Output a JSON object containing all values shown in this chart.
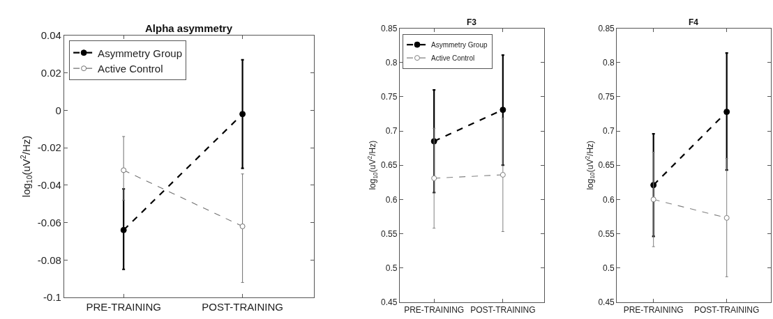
{
  "chart_data": [
    {
      "type": "line",
      "title": "Alpha asymmetry",
      "ylabel": "log$_{10}$(uV$^{2}$/Hz)",
      "categories": [
        "PRE-TRAINING",
        "POST-TRAINING"
      ],
      "ylim": [
        -0.1,
        0.04
      ],
      "yticks": [
        -0.1,
        -0.08,
        -0.06,
        -0.04,
        -0.02,
        0,
        0.02,
        0.04
      ],
      "legend": "top left",
      "line_style": "dashed",
      "series": [
        {
          "name": "Asymmetry Group",
          "color": "#000000",
          "marker": "circle",
          "values": [
            -0.064,
            -0.002
          ],
          "errors": [
            [
              -0.085,
              -0.042
            ],
            [
              -0.031,
              0.027
            ]
          ]
        },
        {
          "name": "Active Control",
          "color": "#707070",
          "marker": "open circle",
          "values": [
            -0.032,
            -0.062
          ],
          "errors": [
            [
              -0.048,
              -0.014
            ],
            [
              -0.092,
              -0.034
            ]
          ]
        }
      ]
    },
    {
      "type": "line",
      "title": "F3",
      "ylabel": "log$_{10}$(uV$^{2}$/Hz)",
      "categories": [
        "PRE-TRAINING",
        "POST-TRAINING"
      ],
      "ylim": [
        0.45,
        0.85
      ],
      "yticks": [
        0.45,
        0.5,
        0.55,
        0.6,
        0.65,
        0.7,
        0.75,
        0.8,
        0.85
      ],
      "legend": "top left",
      "line_style": "dashed",
      "series": [
        {
          "name": "Asymmetry Group",
          "color": "#000000",
          "marker": "circle",
          "values": [
            0.685,
            0.731
          ],
          "errors": [
            [
              0.61,
              0.76
            ],
            [
              0.65,
              0.811
            ]
          ]
        },
        {
          "name": "Active Control",
          "color": "#808080",
          "marker": "open circle",
          "values": [
            0.631,
            0.636
          ],
          "errors": [
            [
              0.558,
              0.704
            ],
            [
              0.553,
              0.719
            ]
          ]
        }
      ]
    },
    {
      "type": "line",
      "title": "F4",
      "ylabel": "log$_{10}$(uV$^{2}$/Hz)",
      "categories": [
        "PRE-TRAINING",
        "POST-TRAINING"
      ],
      "ylim": [
        0.45,
        0.85
      ],
      "yticks": [
        0.45,
        0.5,
        0.55,
        0.6,
        0.65,
        0.7,
        0.75,
        0.8,
        0.85
      ],
      "line_style": "dashed",
      "series": [
        {
          "color": "#000000",
          "marker": "circle",
          "values": [
            0.621,
            0.728
          ],
          "errors": [
            [
              0.546,
              0.696
            ],
            [
              0.643,
              0.814
            ]
          ]
        },
        {
          "color": "#808080",
          "marker": "open circle",
          "values": [
            0.6,
            0.573
          ],
          "errors": [
            [
              0.531,
              0.669
            ],
            [
              0.487,
              0.66
            ]
          ]
        }
      ]
    }
  ]
}
